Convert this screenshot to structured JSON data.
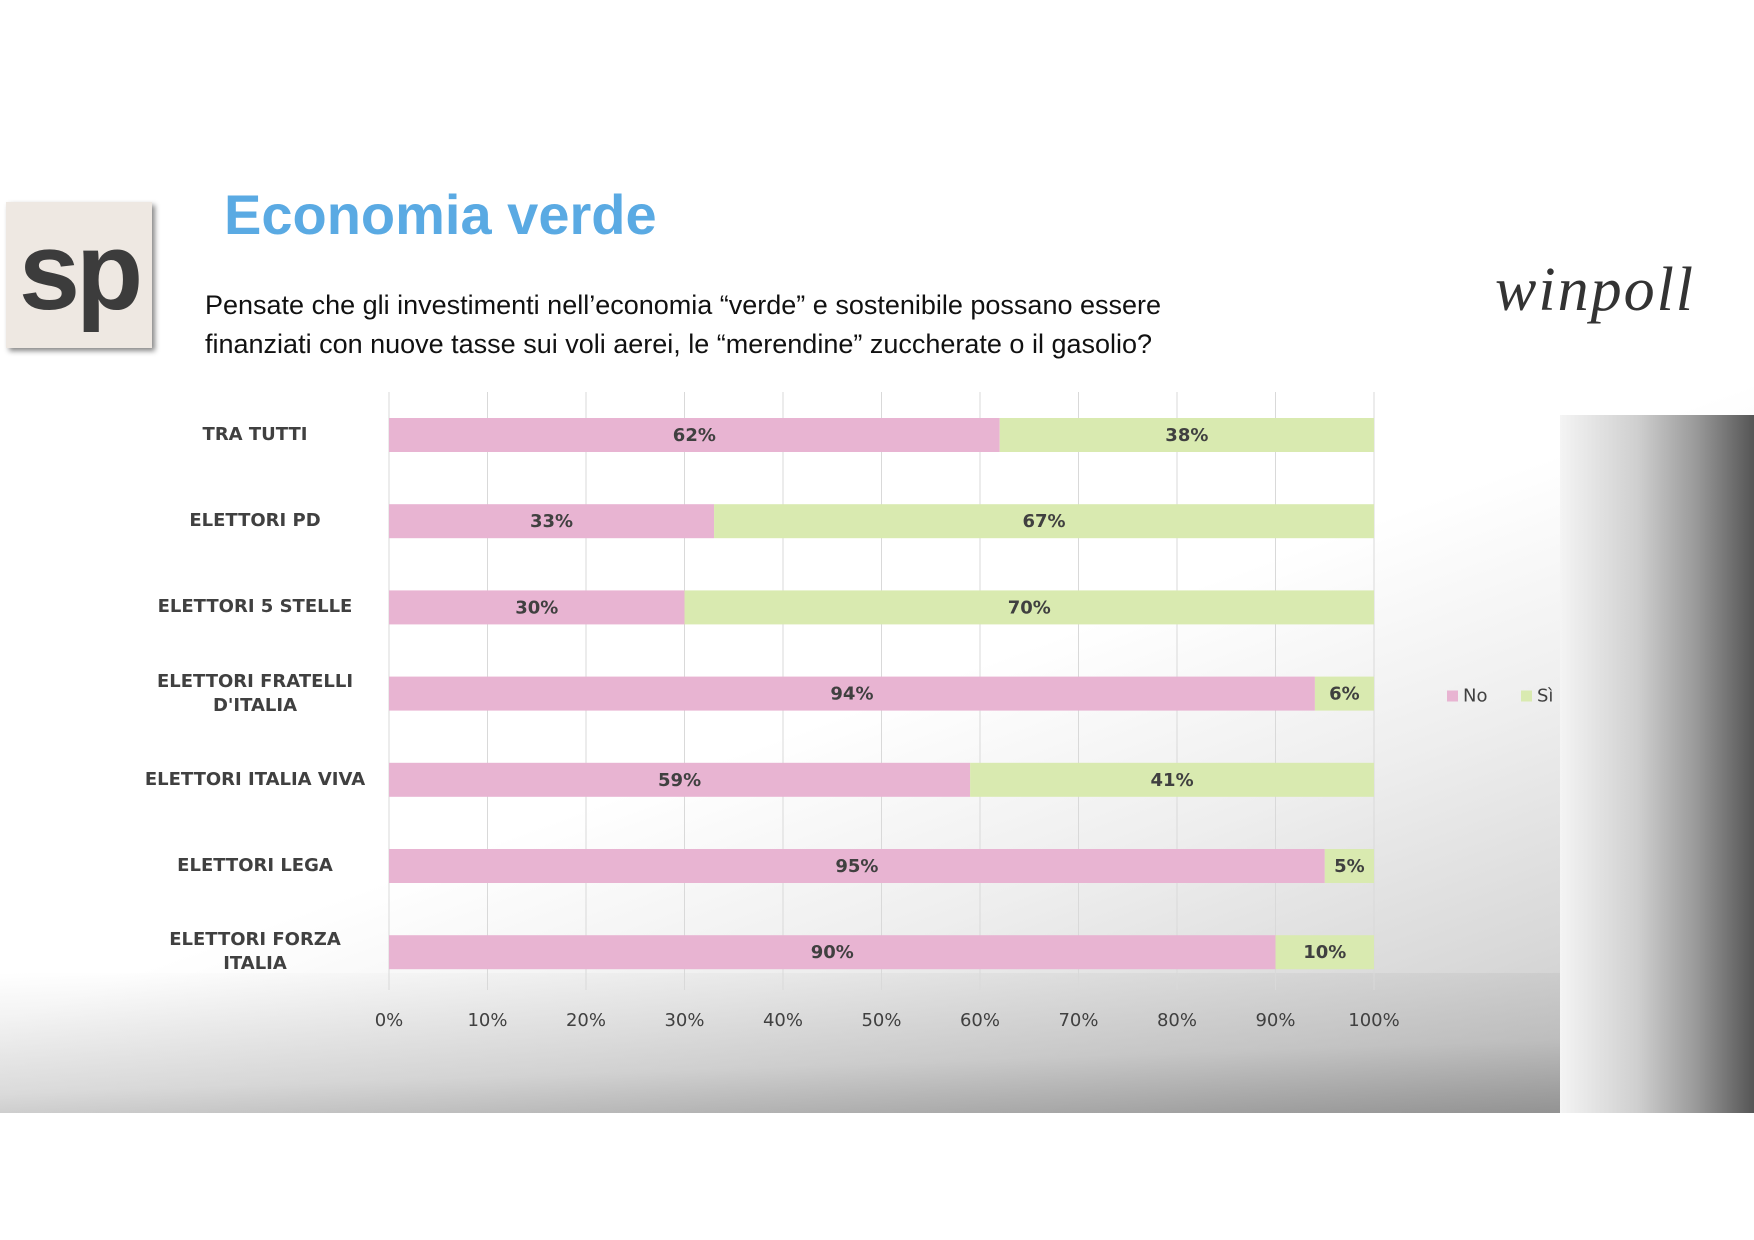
{
  "logos": {
    "left": "sp",
    "right": "winpoll"
  },
  "chart_data": {
    "type": "stacked-bar-horizontal",
    "title": "Economia verde",
    "subtitle": [
      "Pensate che gli investimenti nell’economia “verde” e sostenibile possano essere",
      "finanziati con nuove tasse sui voli aerei, le “merendine” zuccherate o il gasolio?"
    ],
    "categories": [
      "TRA TUTTI",
      "ELETTORI PD",
      "ELETTORI 5 STELLE",
      "ELETTORI FRATELLI D'ITALIA",
      "ELETTORI ITALIA VIVA",
      "ELETTORI LEGA",
      "ELETTORI FORZA ITALIA"
    ],
    "series": [
      {
        "name": "No",
        "color": "#e8b4d2",
        "values": [
          62,
          33,
          30,
          94,
          59,
          95,
          90
        ],
        "value_labels": [
          "62%",
          "33%",
          "30%",
          "94%",
          "59%",
          "95%",
          "90%"
        ]
      },
      {
        "name": "Sì",
        "color": "#d9eab0",
        "values": [
          38,
          67,
          70,
          6,
          41,
          5,
          10
        ],
        "value_labels": [
          "38%",
          "67%",
          "70%",
          "6%",
          "41%",
          "5%",
          "10%"
        ]
      }
    ],
    "xlim": [
      0,
      100
    ],
    "xticks": [
      {
        "value": 0,
        "label": "0%"
      },
      {
        "value": 10,
        "label": "10%"
      },
      {
        "value": 20,
        "label": "20%"
      },
      {
        "value": 30,
        "label": "30%"
      },
      {
        "value": 40,
        "label": "40%"
      },
      {
        "value": 50,
        "label": "50%"
      },
      {
        "value": 60,
        "label": "60%"
      },
      {
        "value": 70,
        "label": "70%"
      },
      {
        "value": 80,
        "label": "80%"
      },
      {
        "value": 90,
        "label": "90%"
      },
      {
        "value": 100,
        "label": "100%"
      }
    ],
    "grid": true,
    "legend": "right"
  }
}
